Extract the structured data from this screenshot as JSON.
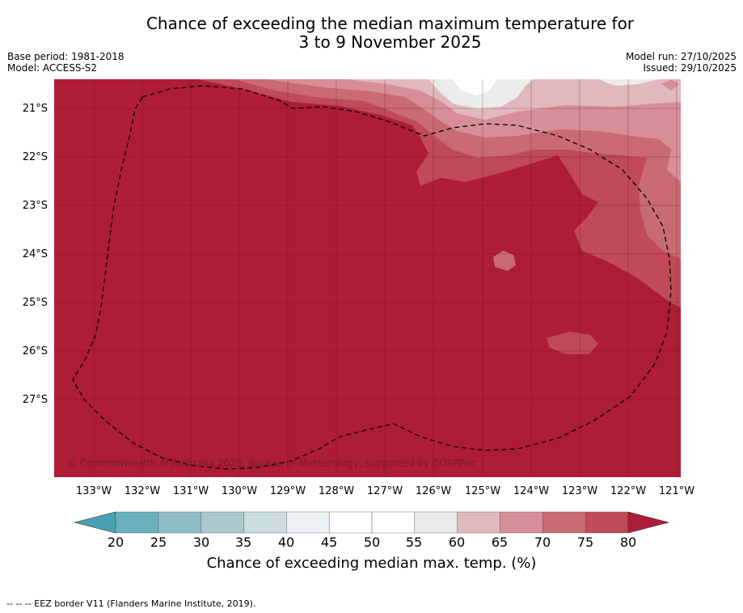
{
  "title_line1": "Chance of exceeding the median maximum temperature for",
  "title_line2": "3 to 9 November 2025",
  "meta_left": [
    "Base period: 1981-2018",
    "Model: ACCESS-S2"
  ],
  "meta_right": [
    "Model run: 27/10/2025",
    "Issued: 29/10/2025"
  ],
  "copyright": "© Commonwealth of Australia 2025, Bureau of Meteorology, supported by COSPPac",
  "lat_labels": [
    "21°S",
    "22°S",
    "23°S",
    "24°S",
    "25°S",
    "26°S",
    "27°S"
  ],
  "lon_labels": [
    "133°W",
    "132°W",
    "131°W",
    "130°W",
    "129°W",
    "128°W",
    "127°W",
    "126°W",
    "125°W",
    "124°W",
    "123°W",
    "122°W",
    "121°W"
  ],
  "colorbar": {
    "ticks": [
      "20",
      "25",
      "30",
      "35",
      "40",
      "45",
      "50",
      "55",
      "60",
      "65",
      "70",
      "75",
      "80"
    ],
    "colors": [
      "#4aa0b3",
      "#6ab0bf",
      "#8fbdc7",
      "#aac8cd",
      "#cbdde1",
      "#ecf2f4",
      "#ffffff",
      "#ffffff",
      "#ebebeb",
      "#e0b8bd",
      "#d88e96",
      "#c96a74",
      "#c04a58",
      "#af1c37"
    ],
    "label": "Chance of exceeding median max. temp. (%)"
  },
  "footer": "--  --  -- EEZ border V11 (Flanders Marine Institute, 2019)."
}
